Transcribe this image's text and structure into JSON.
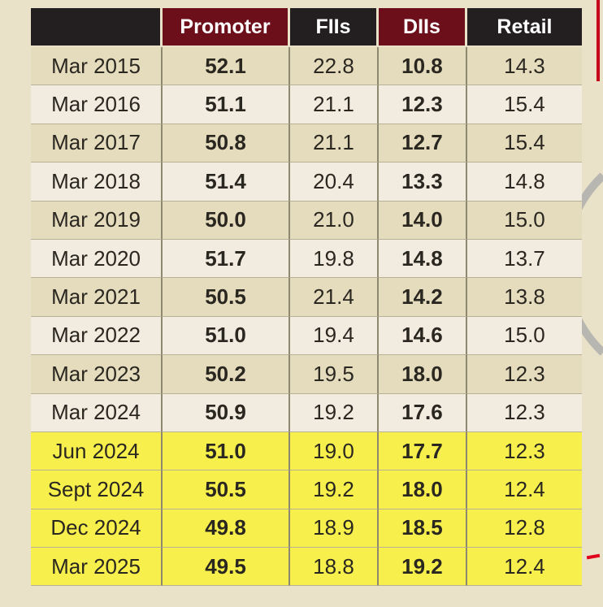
{
  "chart_data": {
    "type": "table",
    "columns": [
      "",
      "Promoter",
      "FIIs",
      "DIIs",
      "Retail"
    ],
    "header_colors": [
      "#231f20",
      "#6d0e1b",
      "#231f20",
      "#6d0e1b",
      "#231f20"
    ],
    "highlight_color": "#f6ef4c",
    "rows": [
      {
        "period": "Mar 2015",
        "values": [
          "52.1",
          "22.8",
          "10.8",
          "14.3"
        ],
        "highlight": false
      },
      {
        "period": "Mar 2016",
        "values": [
          "51.1",
          "21.1",
          "12.3",
          "15.4"
        ],
        "highlight": false
      },
      {
        "period": "Mar 2017",
        "values": [
          "50.8",
          "21.1",
          "12.7",
          "15.4"
        ],
        "highlight": false
      },
      {
        "period": "Mar 2018",
        "values": [
          "51.4",
          "20.4",
          "13.3",
          "14.8"
        ],
        "highlight": false
      },
      {
        "period": "Mar 2019",
        "values": [
          "50.0",
          "21.0",
          "14.0",
          "15.0"
        ],
        "highlight": false
      },
      {
        "period": "Mar 2020",
        "values": [
          "51.7",
          "19.8",
          "14.8",
          "13.7"
        ],
        "highlight": false
      },
      {
        "period": "Mar 2021",
        "values": [
          "50.5",
          "21.4",
          "14.2",
          "13.8"
        ],
        "highlight": false
      },
      {
        "period": "Mar 2022",
        "values": [
          "51.0",
          "19.4",
          "14.6",
          "15.0"
        ],
        "highlight": false
      },
      {
        "period": "Mar 2023",
        "values": [
          "50.2",
          "19.5",
          "18.0",
          "12.3"
        ],
        "highlight": false
      },
      {
        "period": "Mar 2024",
        "values": [
          "50.9",
          "19.2",
          "17.6",
          "12.3"
        ],
        "highlight": false
      },
      {
        "period": "Jun 2024",
        "values": [
          "51.0",
          "19.0",
          "17.7",
          "12.3"
        ],
        "highlight": true
      },
      {
        "period": "Sept 2024",
        "values": [
          "50.5",
          "19.2",
          "18.0",
          "12.4"
        ],
        "highlight": true
      },
      {
        "period": "Dec 2024",
        "values": [
          "49.8",
          "18.9",
          "18.5",
          "12.8"
        ],
        "highlight": true
      },
      {
        "period": "Mar 2025",
        "values": [
          "49.5",
          "18.8",
          "19.2",
          "12.4"
        ],
        "highlight": true
      }
    ]
  }
}
